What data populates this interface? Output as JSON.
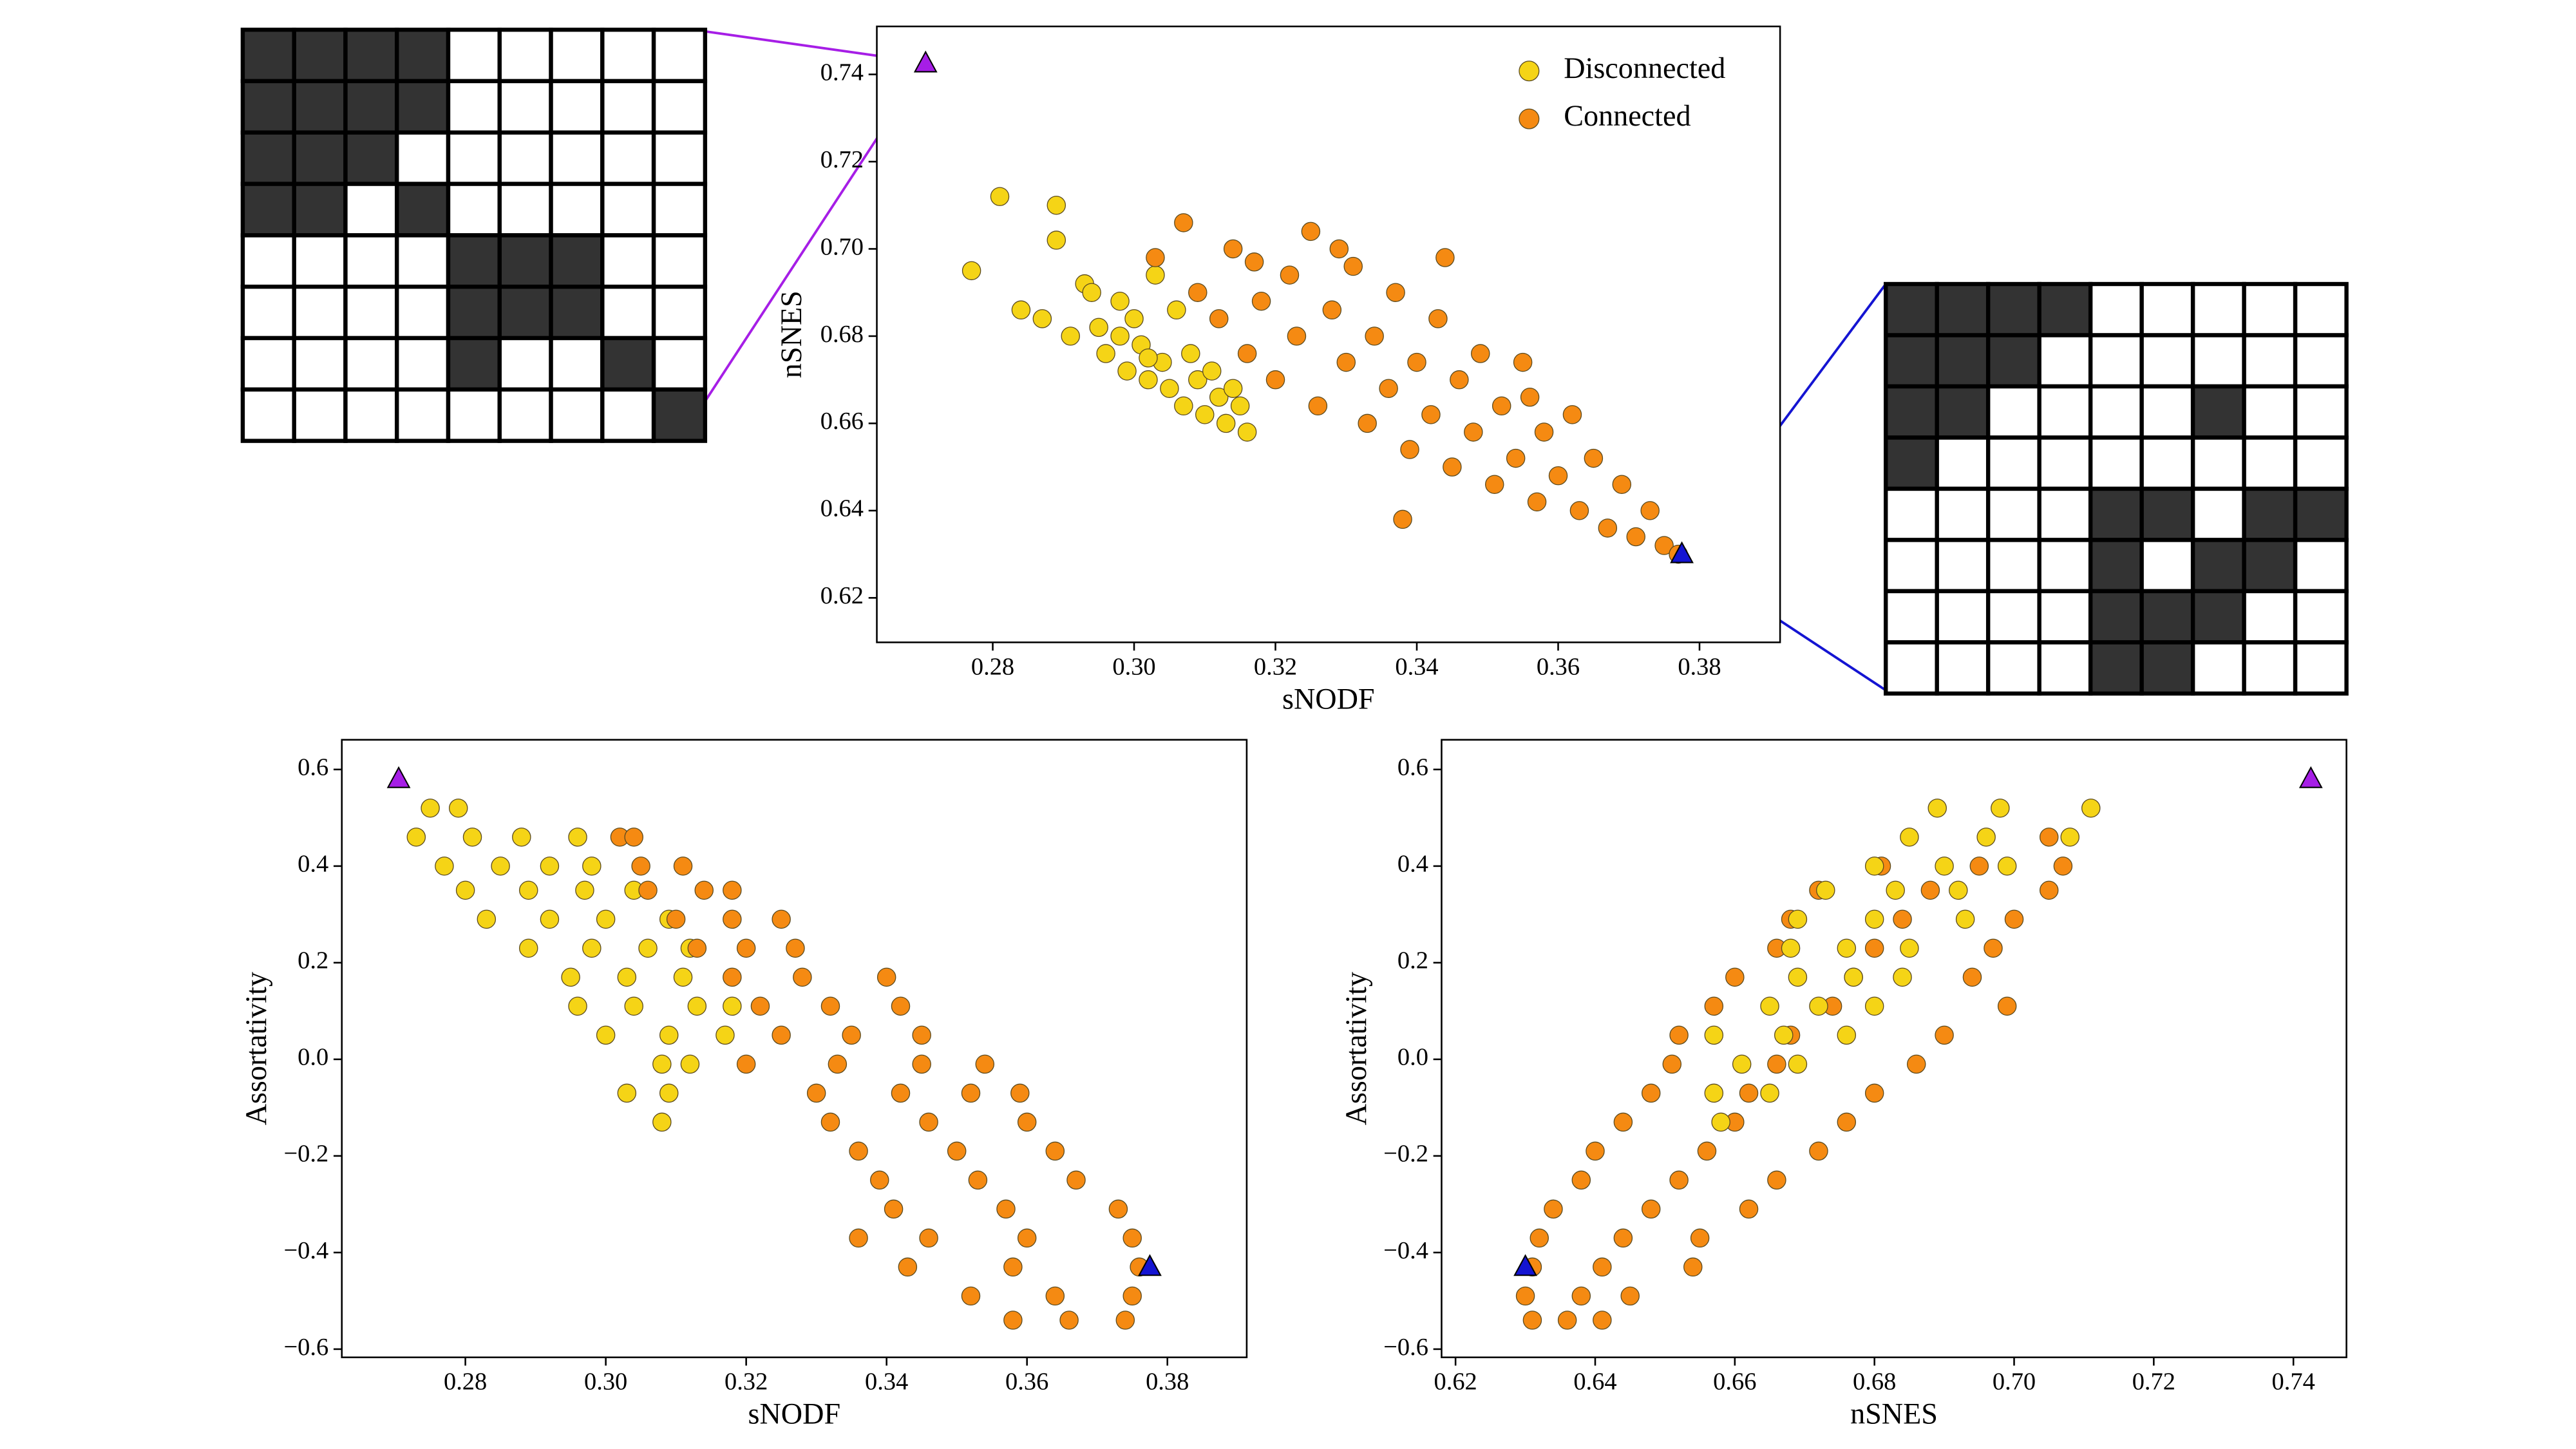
{
  "chart_data": [
    {
      "type": "scatter",
      "xlabel": "sNODF",
      "ylabel": "nSNES",
      "legend": "upper right",
      "xlim": [
        0.2636,
        0.3914
      ],
      "ylim": [
        0.6098,
        0.751
      ],
      "xticks": [
        {
          "value": 0.28,
          "label": "0.28"
        },
        {
          "value": 0.3,
          "label": "0.30"
        },
        {
          "value": 0.32,
          "label": "0.32"
        },
        {
          "value": 0.34,
          "label": "0.34"
        },
        {
          "value": 0.36,
          "label": "0.36"
        },
        {
          "value": 0.38,
          "label": "0.38"
        }
      ],
      "yticks": [
        {
          "value": 0.62,
          "label": "0.62"
        },
        {
          "value": 0.64,
          "label": "0.64"
        },
        {
          "value": 0.66,
          "label": "0.66"
        },
        {
          "value": 0.68,
          "label": "0.68"
        },
        {
          "value": 0.7,
          "label": "0.70"
        },
        {
          "value": 0.72,
          "label": "0.72"
        },
        {
          "value": 0.74,
          "label": "0.74"
        }
      ],
      "series": [
        {
          "name": "Disconnected",
          "color": "#f5d416",
          "x": [
            0.277,
            0.281,
            0.284,
            0.287,
            0.289,
            0.291,
            0.293,
            0.295,
            0.296,
            0.298,
            0.299,
            0.3,
            0.301,
            0.302,
            0.303,
            0.304,
            0.305,
            0.306,
            0.307,
            0.308,
            0.309,
            0.31,
            0.311,
            0.312,
            0.313,
            0.314,
            0.315,
            0.316,
            0.289,
            0.294,
            0.298,
            0.302
          ],
          "values": [
            0.695,
            0.712,
            0.686,
            0.684,
            0.71,
            0.68,
            0.692,
            0.682,
            0.676,
            0.688,
            0.672,
            0.684,
            0.678,
            0.67,
            0.694,
            0.674,
            0.668,
            0.686,
            0.664,
            0.676,
            0.67,
            0.662,
            0.672,
            0.666,
            0.66,
            0.668,
            0.664,
            0.658,
            0.702,
            0.69,
            0.68,
            0.675
          ]
        },
        {
          "name": "Connected",
          "color": "#f58a12",
          "x": [
            0.303,
            0.307,
            0.309,
            0.312,
            0.314,
            0.316,
            0.318,
            0.32,
            0.322,
            0.323,
            0.325,
            0.326,
            0.328,
            0.33,
            0.331,
            0.333,
            0.334,
            0.336,
            0.337,
            0.339,
            0.34,
            0.342,
            0.343,
            0.345,
            0.346,
            0.348,
            0.349,
            0.351,
            0.352,
            0.354,
            0.355,
            0.357,
            0.358,
            0.36,
            0.362,
            0.363,
            0.365,
            0.367,
            0.369,
            0.371,
            0.373,
            0.375,
            0.377,
            0.338,
            0.356,
            0.329,
            0.317,
            0.344
          ],
          "values": [
            0.698,
            0.706,
            0.69,
            0.684,
            0.7,
            0.676,
            0.688,
            0.67,
            0.694,
            0.68,
            0.704,
            0.664,
            0.686,
            0.674,
            0.696,
            0.66,
            0.68,
            0.668,
            0.69,
            0.654,
            0.674,
            0.662,
            0.684,
            0.65,
            0.67,
            0.658,
            0.676,
            0.646,
            0.664,
            0.652,
            0.674,
            0.642,
            0.658,
            0.648,
            0.662,
            0.64,
            0.652,
            0.636,
            0.646,
            0.634,
            0.64,
            0.632,
            0.63,
            0.638,
            0.666,
            0.7,
            0.697,
            0.698
          ]
        },
        {
          "marker": "triangle",
          "color": "#a61ee6",
          "x": [
            0.2705
          ],
          "values": [
            0.7425
          ]
        },
        {
          "marker": "triangle",
          "color": "#1414d2",
          "x": [
            0.3775
          ],
          "values": [
            0.63
          ]
        }
      ]
    },
    {
      "type": "scatter",
      "xlabel": "sNODF",
      "ylabel": "Assortativity",
      "xlim": [
        0.2624,
        0.3913
      ],
      "ylim": [
        -0.617,
        0.6615
      ],
      "xticks": [
        {
          "value": 0.28,
          "label": "0.28"
        },
        {
          "value": 0.3,
          "label": "0.30"
        },
        {
          "value": 0.32,
          "label": "0.32"
        },
        {
          "value": 0.34,
          "label": "0.34"
        },
        {
          "value": 0.36,
          "label": "0.36"
        },
        {
          "value": 0.38,
          "label": "0.38"
        }
      ],
      "yticks": [
        {
          "value": -0.6,
          "label": "−0.6"
        },
        {
          "value": -0.4,
          "label": "−0.4"
        },
        {
          "value": -0.2,
          "label": "−0.2"
        },
        {
          "value": 0,
          "label": "0.0"
        },
        {
          "value": 0.2,
          "label": "0.2"
        },
        {
          "value": 0.4,
          "label": "0.4"
        },
        {
          "value": 0.6,
          "label": "0.6"
        }
      ],
      "series": [
        {
          "name": "Disconnected",
          "color": "#f5d416",
          "x": [
            0.275,
            0.279,
            0.273,
            0.281,
            0.288,
            0.296,
            0.277,
            0.285,
            0.292,
            0.298,
            0.28,
            0.289,
            0.297,
            0.304,
            0.283,
            0.292,
            0.3,
            0.309,
            0.289,
            0.298,
            0.306,
            0.312,
            0.295,
            0.303,
            0.311,
            0.296,
            0.304,
            0.313,
            0.318,
            0.3,
            0.309,
            0.317,
            0.308,
            0.312,
            0.303,
            0.309,
            0.308
          ],
          "values": [
            0.52,
            0.52,
            0.46,
            0.46,
            0.46,
            0.46,
            0.4,
            0.4,
            0.4,
            0.4,
            0.35,
            0.35,
            0.35,
            0.35,
            0.29,
            0.29,
            0.29,
            0.29,
            0.23,
            0.23,
            0.23,
            0.23,
            0.17,
            0.17,
            0.17,
            0.11,
            0.11,
            0.11,
            0.11,
            0.05,
            0.05,
            0.05,
            -0.01,
            -0.01,
            -0.07,
            -0.07,
            -0.13
          ]
        },
        {
          "name": "Connected",
          "color": "#f58a12",
          "x": [
            0.302,
            0.304,
            0.305,
            0.311,
            0.306,
            0.314,
            0.318,
            0.31,
            0.318,
            0.325,
            0.313,
            0.32,
            0.327,
            0.318,
            0.328,
            0.34,
            0.322,
            0.332,
            0.342,
            0.325,
            0.335,
            0.345,
            0.32,
            0.333,
            0.345,
            0.354,
            0.33,
            0.342,
            0.352,
            0.359,
            0.332,
            0.346,
            0.36,
            0.336,
            0.35,
            0.364,
            0.339,
            0.353,
            0.367,
            0.341,
            0.357,
            0.373,
            0.336,
            0.346,
            0.36,
            0.375,
            0.343,
            0.358,
            0.376,
            0.352,
            0.364,
            0.375,
            0.358,
            0.366,
            0.374
          ],
          "values": [
            0.46,
            0.46,
            0.4,
            0.4,
            0.35,
            0.35,
            0.35,
            0.29,
            0.29,
            0.29,
            0.23,
            0.23,
            0.23,
            0.17,
            0.17,
            0.17,
            0.11,
            0.11,
            0.11,
            0.05,
            0.05,
            0.05,
            -0.01,
            -0.01,
            -0.01,
            -0.01,
            -0.07,
            -0.07,
            -0.07,
            -0.07,
            -0.13,
            -0.13,
            -0.13,
            -0.19,
            -0.19,
            -0.19,
            -0.25,
            -0.25,
            -0.25,
            -0.31,
            -0.31,
            -0.31,
            -0.37,
            -0.37,
            -0.37,
            -0.37,
            -0.43,
            -0.43,
            -0.43,
            -0.49,
            -0.49,
            -0.49,
            -0.54,
            -0.54,
            -0.54
          ]
        },
        {
          "marker": "triangle",
          "color": "#a61ee6",
          "x": [
            0.2705
          ],
          "values": [
            0.58
          ]
        },
        {
          "marker": "triangle",
          "color": "#1414d2",
          "x": [
            0.3775
          ],
          "values": [
            -0.43
          ]
        }
      ]
    },
    {
      "type": "scatter",
      "xlabel": "nSNES",
      "ylabel": "Assortativity",
      "xlim": [
        0.618,
        0.7476
      ],
      "ylim": [
        -0.617,
        0.6615
      ],
      "xticks": [
        {
          "value": 0.62,
          "label": "0.62"
        },
        {
          "value": 0.64,
          "label": "0.64"
        },
        {
          "value": 0.66,
          "label": "0.66"
        },
        {
          "value": 0.68,
          "label": "0.68"
        },
        {
          "value": 0.7,
          "label": "0.70"
        },
        {
          "value": 0.72,
          "label": "0.72"
        },
        {
          "value": 0.74,
          "label": "0.74"
        }
      ],
      "yticks": [
        {
          "value": -0.6,
          "label": "−0.6"
        },
        {
          "value": -0.4,
          "label": "−0.4"
        },
        {
          "value": -0.2,
          "label": "−0.2"
        },
        {
          "value": 0,
          "label": "0.0"
        },
        {
          "value": 0.2,
          "label": "0.2"
        },
        {
          "value": 0.4,
          "label": "0.4"
        },
        {
          "value": 0.6,
          "label": "0.6"
        }
      ],
      "series": [
        {
          "name": "Connected",
          "color": "#f58a12",
          "x": [
            0.705,
            0.681,
            0.695,
            0.707,
            0.672,
            0.688,
            0.705,
            0.668,
            0.684,
            0.7,
            0.666,
            0.68,
            0.697,
            0.66,
            0.677,
            0.694,
            0.657,
            0.674,
            0.699,
            0.652,
            0.668,
            0.69,
            0.651,
            0.666,
            0.686,
            0.648,
            0.662,
            0.68,
            0.644,
            0.66,
            0.676,
            0.64,
            0.656,
            0.672,
            0.638,
            0.652,
            0.666,
            0.634,
            0.648,
            0.662,
            0.632,
            0.644,
            0.655,
            0.631,
            0.641,
            0.654,
            0.63,
            0.638,
            0.645,
            0.631,
            0.636,
            0.641
          ],
          "values": [
            0.46,
            0.4,
            0.4,
            0.4,
            0.35,
            0.35,
            0.35,
            0.29,
            0.29,
            0.29,
            0.23,
            0.23,
            0.23,
            0.17,
            0.17,
            0.17,
            0.11,
            0.11,
            0.11,
            0.05,
            0.05,
            0.05,
            -0.01,
            -0.01,
            -0.01,
            -0.07,
            -0.07,
            -0.07,
            -0.13,
            -0.13,
            -0.13,
            -0.19,
            -0.19,
            -0.19,
            -0.25,
            -0.25,
            -0.25,
            -0.31,
            -0.31,
            -0.31,
            -0.37,
            -0.37,
            -0.37,
            -0.43,
            -0.43,
            -0.43,
            -0.49,
            -0.49,
            -0.49,
            -0.54,
            -0.54,
            -0.54
          ]
        },
        {
          "name": "Disconnected",
          "color": "#f5d416",
          "x": [
            0.689,
            0.698,
            0.711,
            0.685,
            0.696,
            0.708,
            0.68,
            0.69,
            0.699,
            0.673,
            0.683,
            0.692,
            0.669,
            0.68,
            0.693,
            0.668,
            0.676,
            0.685,
            0.669,
            0.677,
            0.684,
            0.665,
            0.672,
            0.68,
            0.657,
            0.667,
            0.676,
            0.661,
            0.669,
            0.657,
            0.665,
            0.658
          ],
          "values": [
            0.52,
            0.52,
            0.52,
            0.46,
            0.46,
            0.46,
            0.4,
            0.4,
            0.4,
            0.35,
            0.35,
            0.35,
            0.29,
            0.29,
            0.29,
            0.23,
            0.23,
            0.23,
            0.17,
            0.17,
            0.17,
            0.11,
            0.11,
            0.11,
            0.05,
            0.05,
            0.05,
            -0.01,
            -0.01,
            -0.07,
            -0.07,
            -0.13
          ]
        },
        {
          "marker": "triangle",
          "color": "#a61ee6",
          "x": [
            0.7425
          ],
          "values": [
            0.58
          ]
        },
        {
          "marker": "triangle",
          "color": "#1414d2",
          "x": [
            0.63
          ],
          "values": [
            -0.43
          ]
        }
      ]
    }
  ],
  "matrices": [
    {
      "rows": [
        [
          1,
          1,
          1,
          1,
          0,
          0,
          0,
          0,
          0
        ],
        [
          1,
          1,
          1,
          1,
          0,
          0,
          0,
          0,
          0
        ],
        [
          1,
          1,
          1,
          0,
          0,
          0,
          0,
          0,
          0
        ],
        [
          1,
          1,
          0,
          1,
          0,
          0,
          0,
          0,
          0
        ],
        [
          0,
          0,
          0,
          0,
          1,
          1,
          1,
          0,
          0
        ],
        [
          0,
          0,
          0,
          0,
          1,
          1,
          1,
          0,
          0
        ],
        [
          0,
          0,
          0,
          0,
          1,
          0,
          0,
          1,
          0
        ],
        [
          0,
          0,
          0,
          0,
          0,
          0,
          0,
          0,
          1
        ]
      ]
    },
    {
      "rows": [
        [
          1,
          1,
          1,
          1,
          0,
          0,
          0,
          0,
          0
        ],
        [
          1,
          1,
          1,
          0,
          0,
          0,
          0,
          0,
          0
        ],
        [
          1,
          1,
          0,
          0,
          0,
          0,
          1,
          0,
          0
        ],
        [
          1,
          0,
          0,
          0,
          0,
          0,
          0,
          0,
          0
        ],
        [
          0,
          0,
          0,
          0,
          1,
          1,
          0,
          1,
          1
        ],
        [
          0,
          0,
          0,
          0,
          1,
          0,
          1,
          1,
          0
        ],
        [
          0,
          0,
          0,
          0,
          1,
          1,
          1,
          0,
          0
        ],
        [
          0,
          0,
          0,
          0,
          1,
          1,
          0,
          0,
          0
        ]
      ]
    }
  ]
}
